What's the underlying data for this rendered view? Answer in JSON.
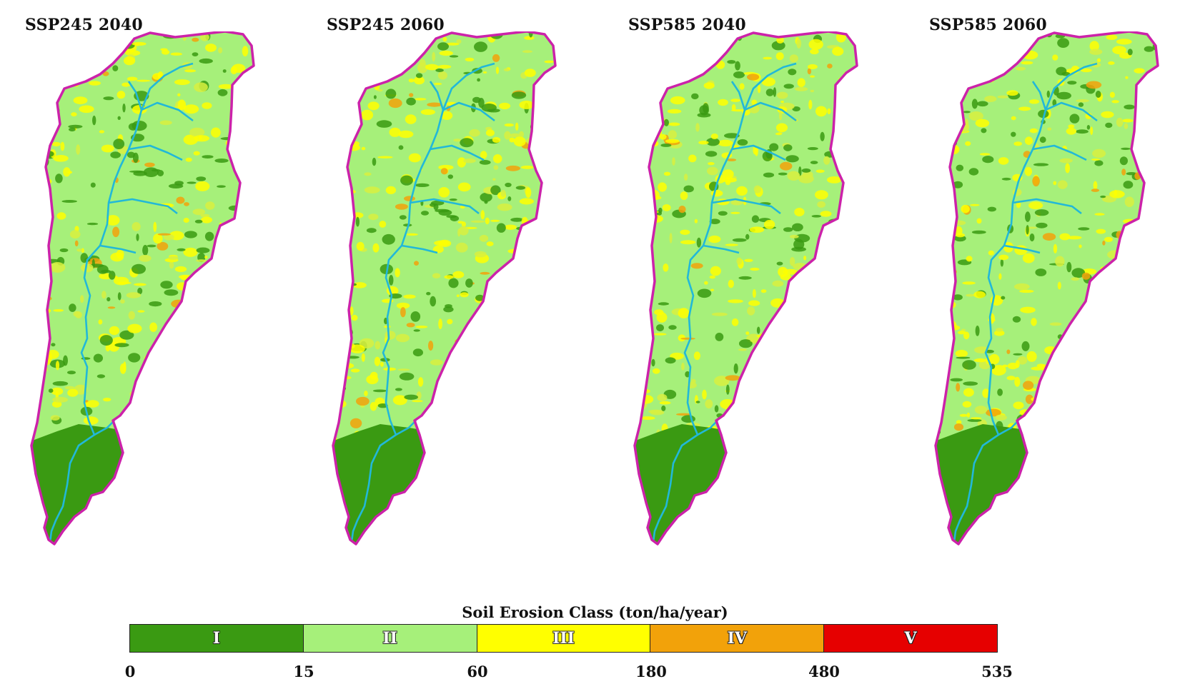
{
  "panels": [
    {
      "title": "SSP245 2040"
    },
    {
      "title": "SSP245 2060"
    },
    {
      "title": "SSP585 2040"
    },
    {
      "title": "SSP585 2060"
    }
  ],
  "legend": {
    "title": "Soil Erosion Class (ton/ha/year)",
    "classes": [
      {
        "label": "I",
        "color": "#3a9a12"
      },
      {
        "label": "II",
        "color": "#a6f07a"
      },
      {
        "label": "III",
        "color": "#ffff00"
      },
      {
        "label": "IV",
        "color": "#f2a20a"
      },
      {
        "label": "V",
        "color": "#e60000"
      }
    ],
    "ticks": [
      "0",
      "15",
      "60",
      "180",
      "480",
      "535"
    ]
  },
  "colors": {
    "boundary": "#cc22aa",
    "river": "#22b8d8"
  }
}
